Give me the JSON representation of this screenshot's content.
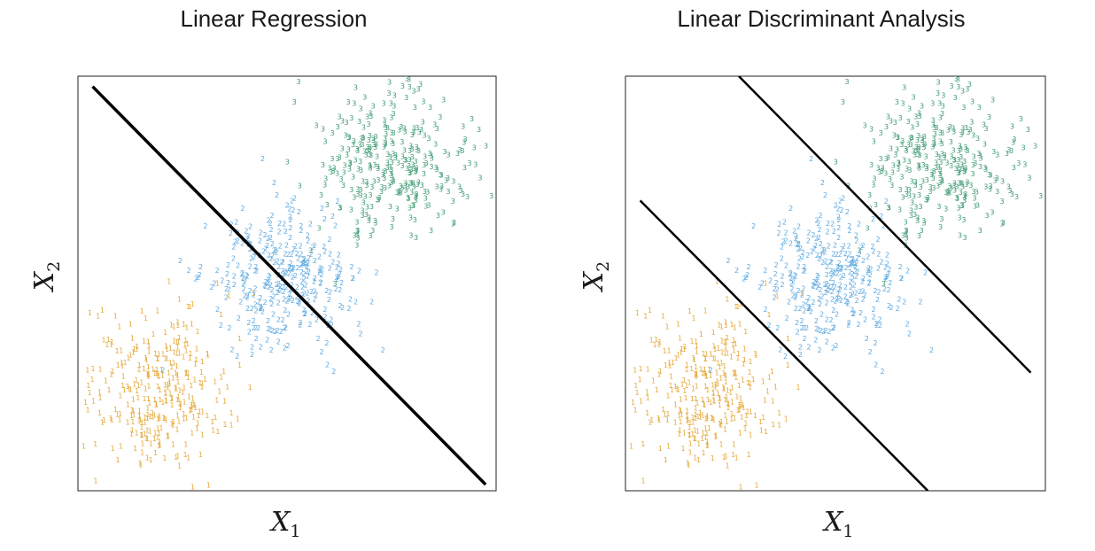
{
  "chart_data": [
    {
      "type": "scatter",
      "title": "Linear Regression",
      "xlabel_symbol": "X",
      "xlabel_sub": "1",
      "ylabel_symbol": "X",
      "ylabel_sub": "2",
      "xlim": [
        0,
        10
      ],
      "ylim": [
        0,
        10
      ],
      "grid": false,
      "series": [
        {
          "name": "1",
          "color": "#E6A93B",
          "center": [
            1.9,
            2.4
          ],
          "spread": [
            0.85,
            0.95
          ],
          "count": 320
        },
        {
          "name": "2",
          "color": "#5DA9E0",
          "center": [
            4.8,
            5.0
          ],
          "spread": [
            0.85,
            0.8
          ],
          "count": 320
        },
        {
          "name": "3",
          "color": "#3E9A72",
          "center": [
            7.5,
            7.9
          ],
          "spread": [
            0.9,
            0.85
          ],
          "count": 320
        }
      ],
      "lines": [
        {
          "x": [
            0.35,
            9.75
          ],
          "y": [
            9.75,
            0.15
          ]
        }
      ]
    },
    {
      "type": "scatter",
      "title": "Linear Discriminant Analysis",
      "xlabel_symbol": "X",
      "xlabel_sub": "1",
      "ylabel_symbol": "X",
      "ylabel_sub": "2",
      "xlim": [
        0,
        10
      ],
      "ylim": [
        0,
        10
      ],
      "grid": false,
      "series": [
        {
          "name": "1",
          "color": "#E6A93B",
          "center": [
            1.9,
            2.4
          ],
          "spread": [
            0.85,
            0.95
          ],
          "count": 320
        },
        {
          "name": "2",
          "color": "#5DA9E0",
          "center": [
            4.8,
            5.0
          ],
          "spread": [
            0.85,
            0.8
          ],
          "count": 320
        },
        {
          "name": "3",
          "color": "#3E9A72",
          "center": [
            7.5,
            7.9
          ],
          "spread": [
            0.9,
            0.85
          ],
          "count": 320
        }
      ],
      "lines": [
        {
          "x": [
            0.35,
            7.2
          ],
          "y": [
            7.0,
            0.0
          ]
        },
        {
          "x": [
            2.7,
            9.65
          ],
          "y": [
            10.0,
            2.85
          ]
        }
      ]
    }
  ]
}
